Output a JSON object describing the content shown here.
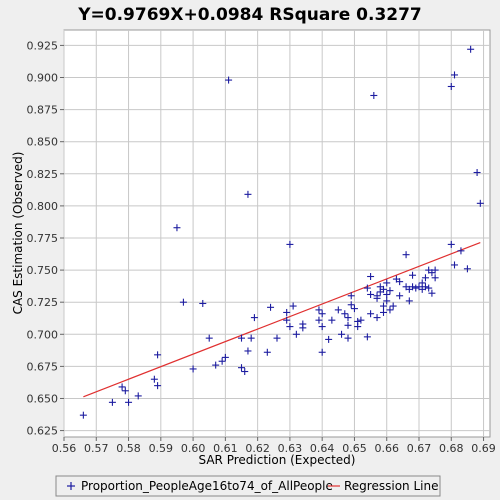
{
  "chart_data": {
    "type": "scatter",
    "title": "Y=0.9769X+0.0984    RSquare 0.3277",
    "xlabel": "SAR Prediction (Expected)",
    "ylabel": "CAS Estimation (Observed)",
    "xlim": [
      0.56,
      0.692
    ],
    "ylim": [
      0.62,
      0.937
    ],
    "xticks": [
      "0.56",
      "0.57",
      "0.58",
      "0.59",
      "0.60",
      "0.61",
      "0.62",
      "0.63",
      "0.64",
      "0.65",
      "0.66",
      "0.67",
      "0.68",
      "0.69"
    ],
    "yticks": [
      "0.625",
      "0.650",
      "0.675",
      "0.700",
      "0.725",
      "0.750",
      "0.775",
      "0.800",
      "0.825",
      "0.850",
      "0.875",
      "0.900",
      "0.925"
    ],
    "grid": true,
    "legend_position": "bottom",
    "colors": {
      "points": "#1c1ca0",
      "regression": "#e03030",
      "grid": "#c8c8c8",
      "plot_bg": "#ffffff"
    },
    "series": [
      {
        "name": "Proportion_PeopleAge16to74_of_AllPeople",
        "kind": "points",
        "points": [
          [
            0.566,
            0.637
          ],
          [
            0.575,
            0.647
          ],
          [
            0.578,
            0.659
          ],
          [
            0.579,
            0.656
          ],
          [
            0.58,
            0.647
          ],
          [
            0.583,
            0.652
          ],
          [
            0.588,
            0.665
          ],
          [
            0.589,
            0.684
          ],
          [
            0.589,
            0.66
          ],
          [
            0.595,
            0.783
          ],
          [
            0.597,
            0.725
          ],
          [
            0.6,
            0.673
          ],
          [
            0.603,
            0.724
          ],
          [
            0.605,
            0.697
          ],
          [
            0.607,
            0.676
          ],
          [
            0.609,
            0.679
          ],
          [
            0.61,
            0.682
          ],
          [
            0.611,
            0.898
          ],
          [
            0.615,
            0.697
          ],
          [
            0.615,
            0.674
          ],
          [
            0.616,
            0.671
          ],
          [
            0.617,
            0.687
          ],
          [
            0.617,
            0.809
          ],
          [
            0.618,
            0.697
          ],
          [
            0.619,
            0.713
          ],
          [
            0.623,
            0.686
          ],
          [
            0.624,
            0.721
          ],
          [
            0.626,
            0.697
          ],
          [
            0.629,
            0.717
          ],
          [
            0.629,
            0.711
          ],
          [
            0.63,
            0.706
          ],
          [
            0.63,
            0.77
          ],
          [
            0.631,
            0.722
          ],
          [
            0.632,
            0.7
          ],
          [
            0.634,
            0.708
          ],
          [
            0.634,
            0.705
          ],
          [
            0.639,
            0.719
          ],
          [
            0.639,
            0.711
          ],
          [
            0.64,
            0.706
          ],
          [
            0.64,
            0.716
          ],
          [
            0.64,
            0.686
          ],
          [
            0.642,
            0.696
          ],
          [
            0.643,
            0.711
          ],
          [
            0.645,
            0.719
          ],
          [
            0.646,
            0.7
          ],
          [
            0.647,
            0.716
          ],
          [
            0.648,
            0.707
          ],
          [
            0.648,
            0.697
          ],
          [
            0.648,
            0.713
          ],
          [
            0.649,
            0.723
          ],
          [
            0.649,
            0.73
          ],
          [
            0.65,
            0.72
          ],
          [
            0.651,
            0.71
          ],
          [
            0.651,
            0.706
          ],
          [
            0.652,
            0.711
          ],
          [
            0.654,
            0.736
          ],
          [
            0.654,
            0.698
          ],
          [
            0.655,
            0.731
          ],
          [
            0.655,
            0.745
          ],
          [
            0.655,
            0.716
          ],
          [
            0.656,
            0.886
          ],
          [
            0.657,
            0.73
          ],
          [
            0.657,
            0.728
          ],
          [
            0.657,
            0.713
          ],
          [
            0.658,
            0.737
          ],
          [
            0.658,
            0.733
          ],
          [
            0.659,
            0.722
          ],
          [
            0.659,
            0.735
          ],
          [
            0.659,
            0.717
          ],
          [
            0.66,
            0.726
          ],
          [
            0.66,
            0.731
          ],
          [
            0.66,
            0.74
          ],
          [
            0.661,
            0.719
          ],
          [
            0.661,
            0.734
          ],
          [
            0.662,
            0.722
          ],
          [
            0.663,
            0.743
          ],
          [
            0.664,
            0.741
          ],
          [
            0.664,
            0.73
          ],
          [
            0.666,
            0.737
          ],
          [
            0.666,
            0.762
          ],
          [
            0.667,
            0.726
          ],
          [
            0.667,
            0.735
          ],
          [
            0.668,
            0.746
          ],
          [
            0.668,
            0.737
          ],
          [
            0.669,
            0.736
          ],
          [
            0.67,
            0.737
          ],
          [
            0.671,
            0.735
          ],
          [
            0.671,
            0.74
          ],
          [
            0.672,
            0.744
          ],
          [
            0.672,
            0.737
          ],
          [
            0.673,
            0.736
          ],
          [
            0.673,
            0.75
          ],
          [
            0.674,
            0.748
          ],
          [
            0.674,
            0.732
          ],
          [
            0.675,
            0.744
          ],
          [
            0.675,
            0.75
          ],
          [
            0.68,
            0.77
          ],
          [
            0.68,
            0.893
          ],
          [
            0.681,
            0.902
          ],
          [
            0.681,
            0.754
          ],
          [
            0.683,
            0.765
          ],
          [
            0.685,
            0.751
          ],
          [
            0.686,
            0.922
          ],
          [
            0.688,
            0.826
          ],
          [
            0.689,
            0.802
          ]
        ]
      },
      {
        "name": "Regression Line",
        "kind": "line",
        "slope": 0.9769,
        "intercept": 0.0984,
        "x_range": [
          0.566,
          0.689
        ]
      }
    ]
  }
}
